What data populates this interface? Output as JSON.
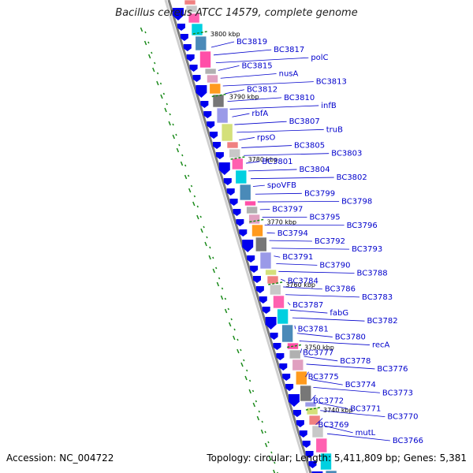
{
  "title": "Bacillus cereus ATCC 14579, complete genome",
  "footer": {
    "accession": "Accession: NC_004722",
    "summary": "Topology: circular; Length: 5,411,809 bp; Genes: 5,381"
  },
  "ticks": [
    "3800 kbp",
    "3790 kbp",
    "3780 kbp",
    "3770 kbp",
    "3760 kbp",
    "3750 kbp",
    "3740 kbp"
  ],
  "genes": [
    "BC3819",
    "BC3817",
    "polC",
    "BC3815",
    "nusA",
    "BC3813",
    "BC3812",
    "BC3810",
    "infB",
    "rbfA",
    "BC3807",
    "truB",
    "rpsO",
    "BC3805",
    "BC3803",
    "BC3801",
    "BC3804",
    "BC3802",
    "spoVFB",
    "BC3799",
    "BC3798",
    "BC3797",
    "BC3795",
    "BC3796",
    "BC3794",
    "BC3792",
    "BC3793",
    "BC3791",
    "BC3790",
    "BC3788",
    "BC3784",
    "BC3786",
    "BC3783",
    "BC3787",
    "fabG",
    "BC3782",
    "BC3781",
    "BC3780",
    "recA",
    "BC3777",
    "BC3778",
    "BC3776",
    "BC3775",
    "BC3774",
    "BC3773",
    "BC3772",
    "BC3771",
    "BC3770",
    "BC3769",
    "mutL",
    "BC3766"
  ],
  "colors": {
    "label": "#0000cc",
    "strand": "#0000ee",
    "tick": "#1a8a1a",
    "backbone": "#7a7a7a"
  }
}
